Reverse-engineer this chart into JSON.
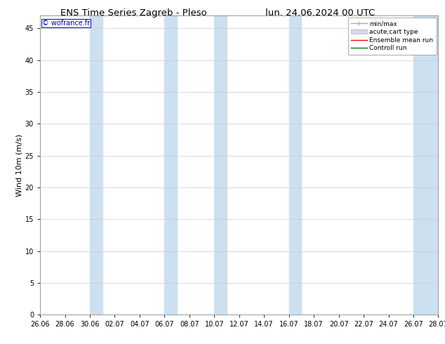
{
  "title_left": "ENS Time Series Zagreb - Pleso",
  "title_right": "lun. 24.06.2024 00 UTC",
  "ylabel": "Wind 10m (m/s)",
  "watermark": "© wofrance.fr",
  "xlim_start": 0,
  "xlim_end": 32,
  "ylim": [
    0,
    47
  ],
  "yticks": [
    0,
    5,
    10,
    15,
    20,
    25,
    30,
    35,
    40,
    45
  ],
  "xtick_labels": [
    "26.06",
    "28.06",
    "30.06",
    "02.07",
    "04.07",
    "06.07",
    "08.07",
    "10.07",
    "12.07",
    "14.07",
    "16.07",
    "18.07",
    "20.07",
    "22.07",
    "24.07",
    "26.07",
    "28.07"
  ],
  "xtick_positions": [
    0,
    2,
    4,
    6,
    8,
    10,
    12,
    14,
    16,
    18,
    20,
    22,
    24,
    26,
    28,
    30,
    32
  ],
  "shaded_bands": [
    {
      "x_start": 4,
      "x_end": 5.0
    },
    {
      "x_start": 10,
      "x_end": 11.0
    },
    {
      "x_start": 14,
      "x_end": 15.0
    },
    {
      "x_start": 20,
      "x_end": 21.0
    },
    {
      "x_start": 30,
      "x_end": 32
    }
  ],
  "shade_color": "#cce0f0",
  "shade_alpha": 1.0,
  "bg_color": "#ffffff",
  "grid_color": "#cccccc",
  "legend_items": [
    {
      "label": "min/max",
      "color": "#aaaaaa",
      "lw": 1.0,
      "style": "errorbar"
    },
    {
      "label": "acute;cart type",
      "color": "#cce0f0",
      "lw": 4,
      "style": "box"
    },
    {
      "label": "Ensemble mean run",
      "color": "red",
      "lw": 1.0,
      "style": "line"
    },
    {
      "label": "Controll run",
      "color": "green",
      "lw": 1.0,
      "style": "line"
    }
  ],
  "watermark_color": "#0000cc",
  "title_fontsize": 9.5,
  "tick_fontsize": 7,
  "ylabel_fontsize": 8,
  "legend_fontsize": 6.5,
  "watermark_fontsize": 7
}
